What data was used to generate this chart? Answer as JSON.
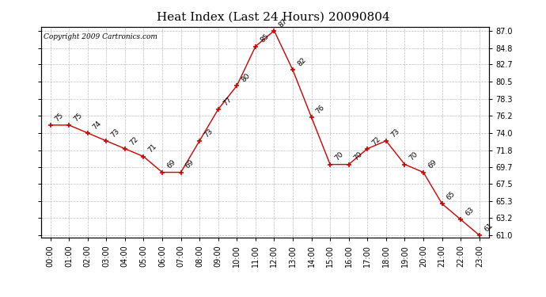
{
  "title": "Heat Index (Last 24 Hours) 20090804",
  "copyright_text": "Copyright 2009 Cartronics.com",
  "hours": [
    "00:00",
    "01:00",
    "02:00",
    "03:00",
    "04:00",
    "05:00",
    "06:00",
    "07:00",
    "08:00",
    "09:00",
    "10:00",
    "11:00",
    "12:00",
    "13:00",
    "14:00",
    "15:00",
    "16:00",
    "17:00",
    "18:00",
    "19:00",
    "20:00",
    "21:00",
    "22:00",
    "23:00"
  ],
  "values": [
    75,
    75,
    74,
    73,
    72,
    71,
    69,
    69,
    73,
    77,
    80,
    85,
    87,
    82,
    76,
    70,
    70,
    72,
    73,
    70,
    69,
    65,
    63,
    61
  ],
  "line_color": "#cc0000",
  "marker": "+",
  "marker_color": "#cc0000",
  "bg_color": "#ffffff",
  "grid_color": "#bbbbbb",
  "ylim_min": 61.0,
  "ylim_max": 87.0,
  "yticks": [
    61.0,
    63.2,
    65.3,
    67.5,
    69.7,
    71.8,
    74.0,
    76.2,
    78.3,
    80.5,
    82.7,
    84.8,
    87.0
  ],
  "title_fontsize": 11,
  "label_fontsize": 7,
  "copyright_fontsize": 6.5,
  "annot_fontsize": 6.5
}
